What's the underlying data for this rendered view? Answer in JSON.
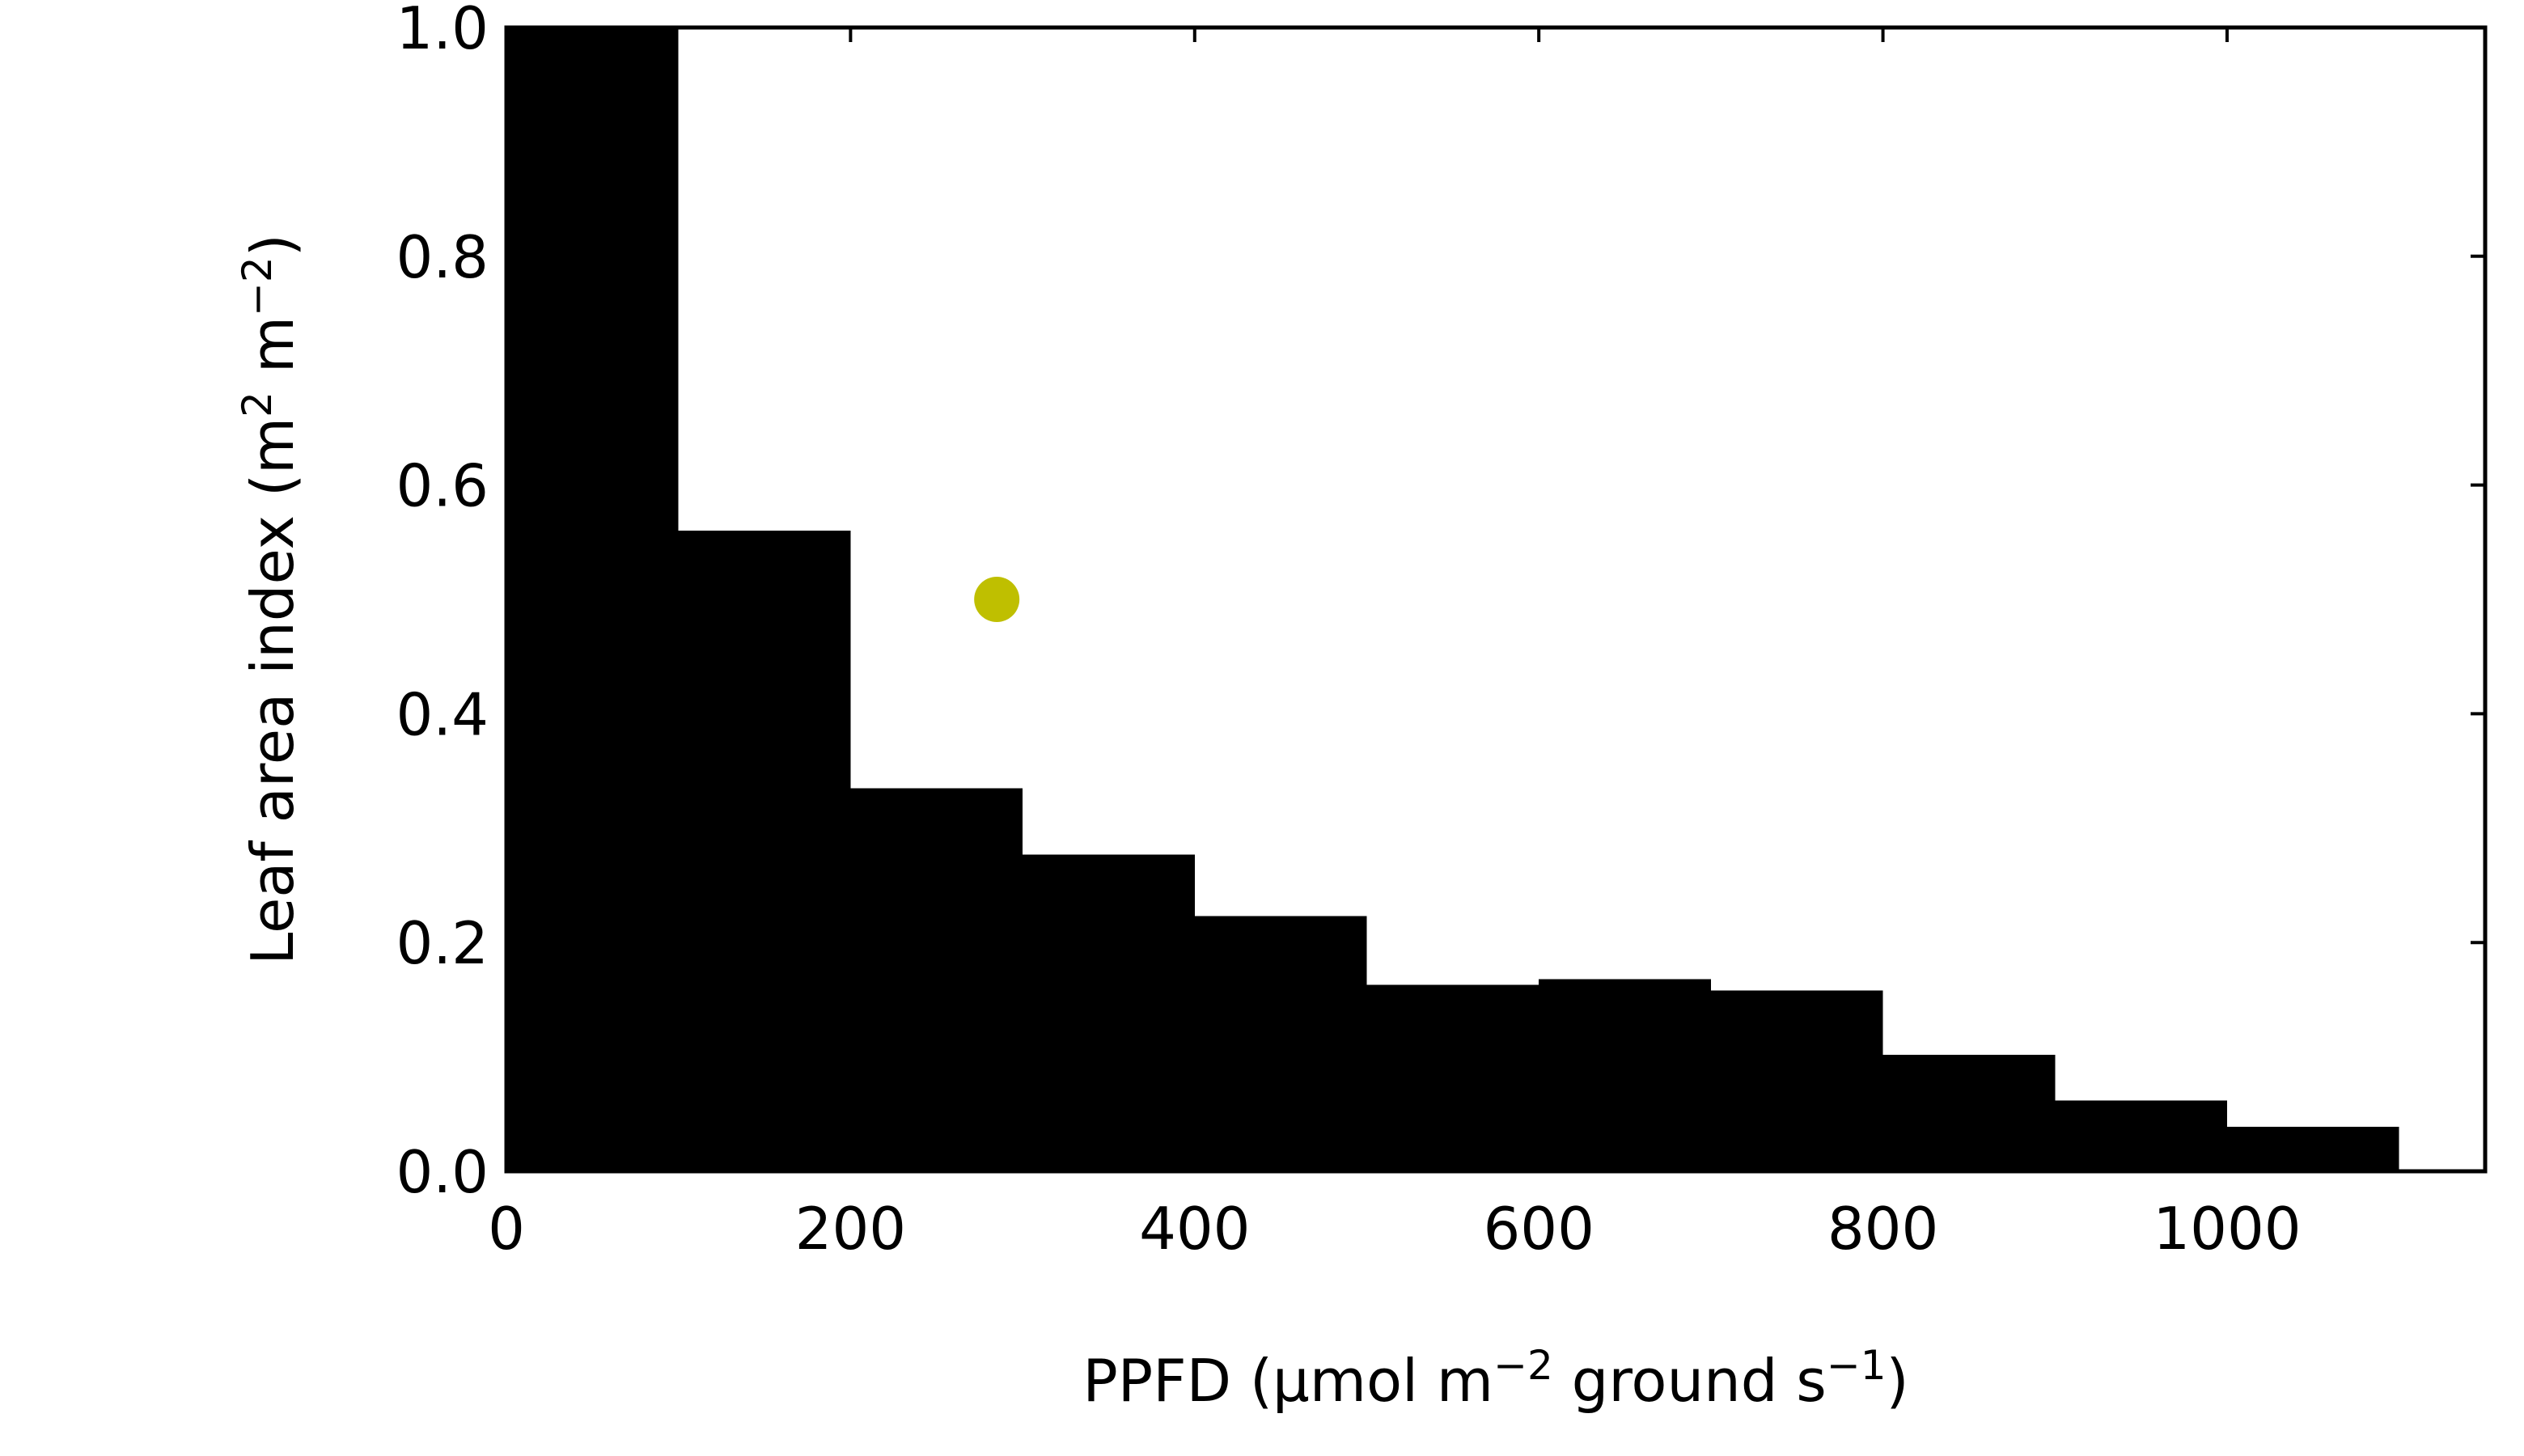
{
  "chart_data": {
    "type": "bar",
    "title": "",
    "xlabel": {
      "parts": [
        {
          "text": "PPFD (µmol m",
          "sup": false
        },
        {
          "text": "−2",
          "sup": true
        },
        {
          "text": " ground s",
          "sup": false
        },
        {
          "text": "−1",
          "sup": true
        },
        {
          "text": ")",
          "sup": false
        }
      ]
    },
    "ylabel": {
      "parts": [
        {
          "text": "Leaf area index (m",
          "sup": false
        },
        {
          "text": "2",
          "sup": true
        },
        {
          "text": " m",
          "sup": false
        },
        {
          "text": "−2",
          "sup": true
        },
        {
          "text": ")",
          "sup": false
        }
      ]
    },
    "xlim": [
      0,
      1150
    ],
    "ylim": [
      0,
      1.0
    ],
    "x_ticks": [
      0,
      200,
      400,
      600,
      800,
      1000
    ],
    "x_tick_labels": [
      "0",
      "200",
      "400",
      "600",
      "800",
      "1000"
    ],
    "y_ticks": [
      0.0,
      0.2,
      0.4,
      0.6,
      0.8,
      1.0
    ],
    "y_tick_labels": [
      "0.0",
      "0.2",
      "0.4",
      "0.6",
      "0.8",
      "1.0"
    ],
    "bin_width": 100,
    "bins": [
      {
        "x0": 0,
        "x1": 100,
        "value": 1.0
      },
      {
        "x0": 100,
        "x1": 200,
        "value": 0.56
      },
      {
        "x0": 200,
        "x1": 300,
        "value": 0.335
      },
      {
        "x0": 300,
        "x1": 400,
        "value": 0.277
      },
      {
        "x0": 400,
        "x1": 500,
        "value": 0.223
      },
      {
        "x0": 500,
        "x1": 600,
        "value": 0.163
      },
      {
        "x0": 600,
        "x1": 700,
        "value": 0.168
      },
      {
        "x0": 700,
        "x1": 800,
        "value": 0.158
      },
      {
        "x0": 800,
        "x1": 900,
        "value": 0.102
      },
      {
        "x0": 900,
        "x1": 1000,
        "value": 0.062
      },
      {
        "x0": 1000,
        "x1": 1100,
        "value": 0.039
      }
    ],
    "bar_color": "#000000",
    "marker": {
      "x": 285,
      "y": 0.5,
      "color": "#bfbf00"
    },
    "grid": false,
    "legend": "none"
  }
}
